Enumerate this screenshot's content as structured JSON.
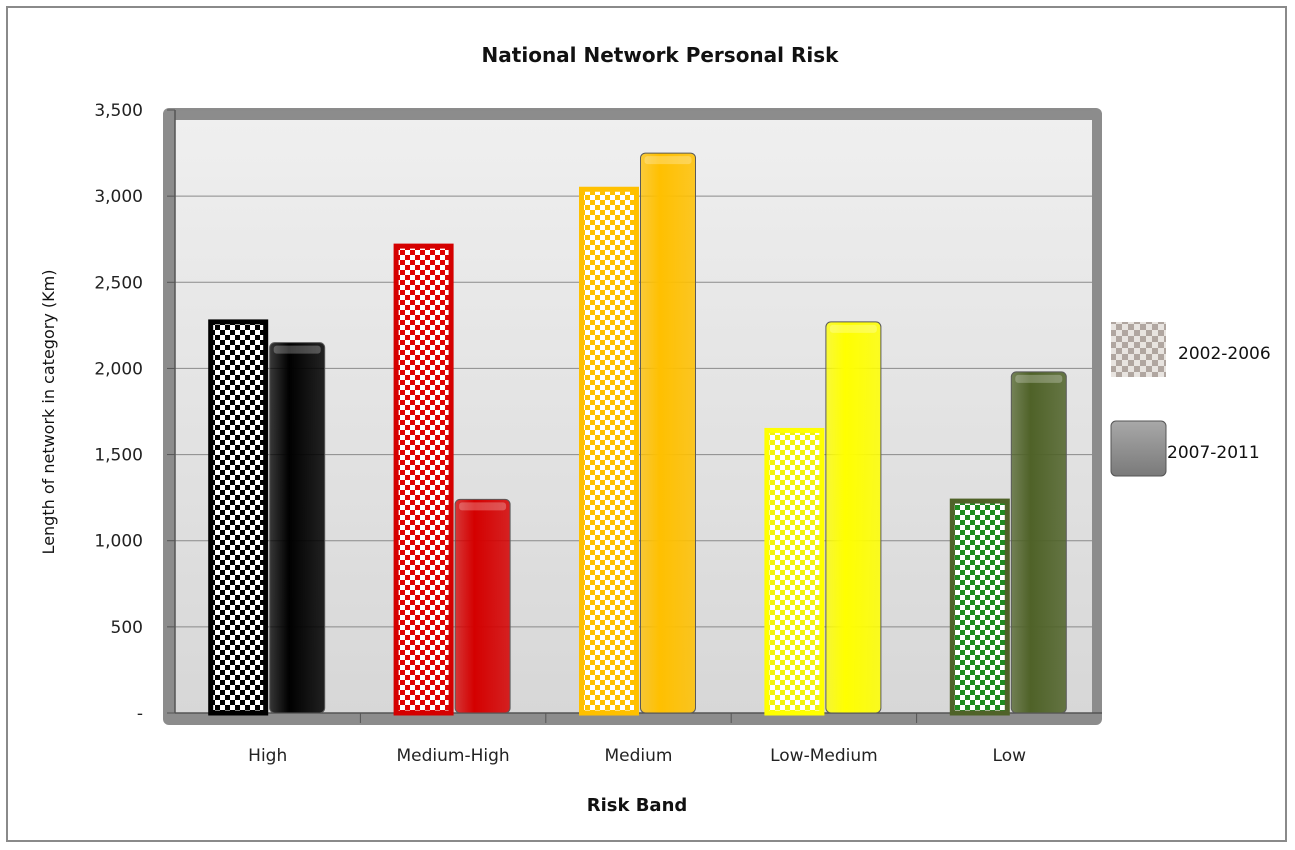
{
  "chart_data": {
    "type": "bar",
    "title": "National Network Personal Risk",
    "xlabel": "Risk Band",
    "ylabel": "Length of network in category (Km)",
    "categories": [
      "High",
      "Medium-High",
      "Medium",
      "Low-Medium",
      "Low"
    ],
    "series": [
      {
        "name": "2002-2006",
        "pattern": "checkered",
        "values": [
          2270,
          2710,
          3040,
          1640,
          1230
        ]
      },
      {
        "name": "2007-2011",
        "pattern": "solid",
        "values": [
          2150,
          1240,
          3250,
          2270,
          1980
        ]
      }
    ],
    "category_colors": [
      "#000000",
      "#d40000",
      "#ffc000",
      "#ffff00",
      "#4f6228"
    ],
    "checker_colors": [
      "#000000",
      "#e00000",
      "#ffc000",
      "#f2f20a",
      "#1f8a1f"
    ],
    "legend_colors": [
      "#b0a6a0",
      "#7a7a7a"
    ],
    "ylim": [
      0,
      3500
    ],
    "yticks": [
      0,
      500,
      1000,
      1500,
      2000,
      2500,
      3000,
      3500
    ],
    "ytick_labels": [
      "-",
      "500",
      "1,000",
      "1,500",
      "2,000",
      "2,500",
      "3,000",
      "3,500"
    ],
    "grid": true,
    "legend_position": "right"
  }
}
